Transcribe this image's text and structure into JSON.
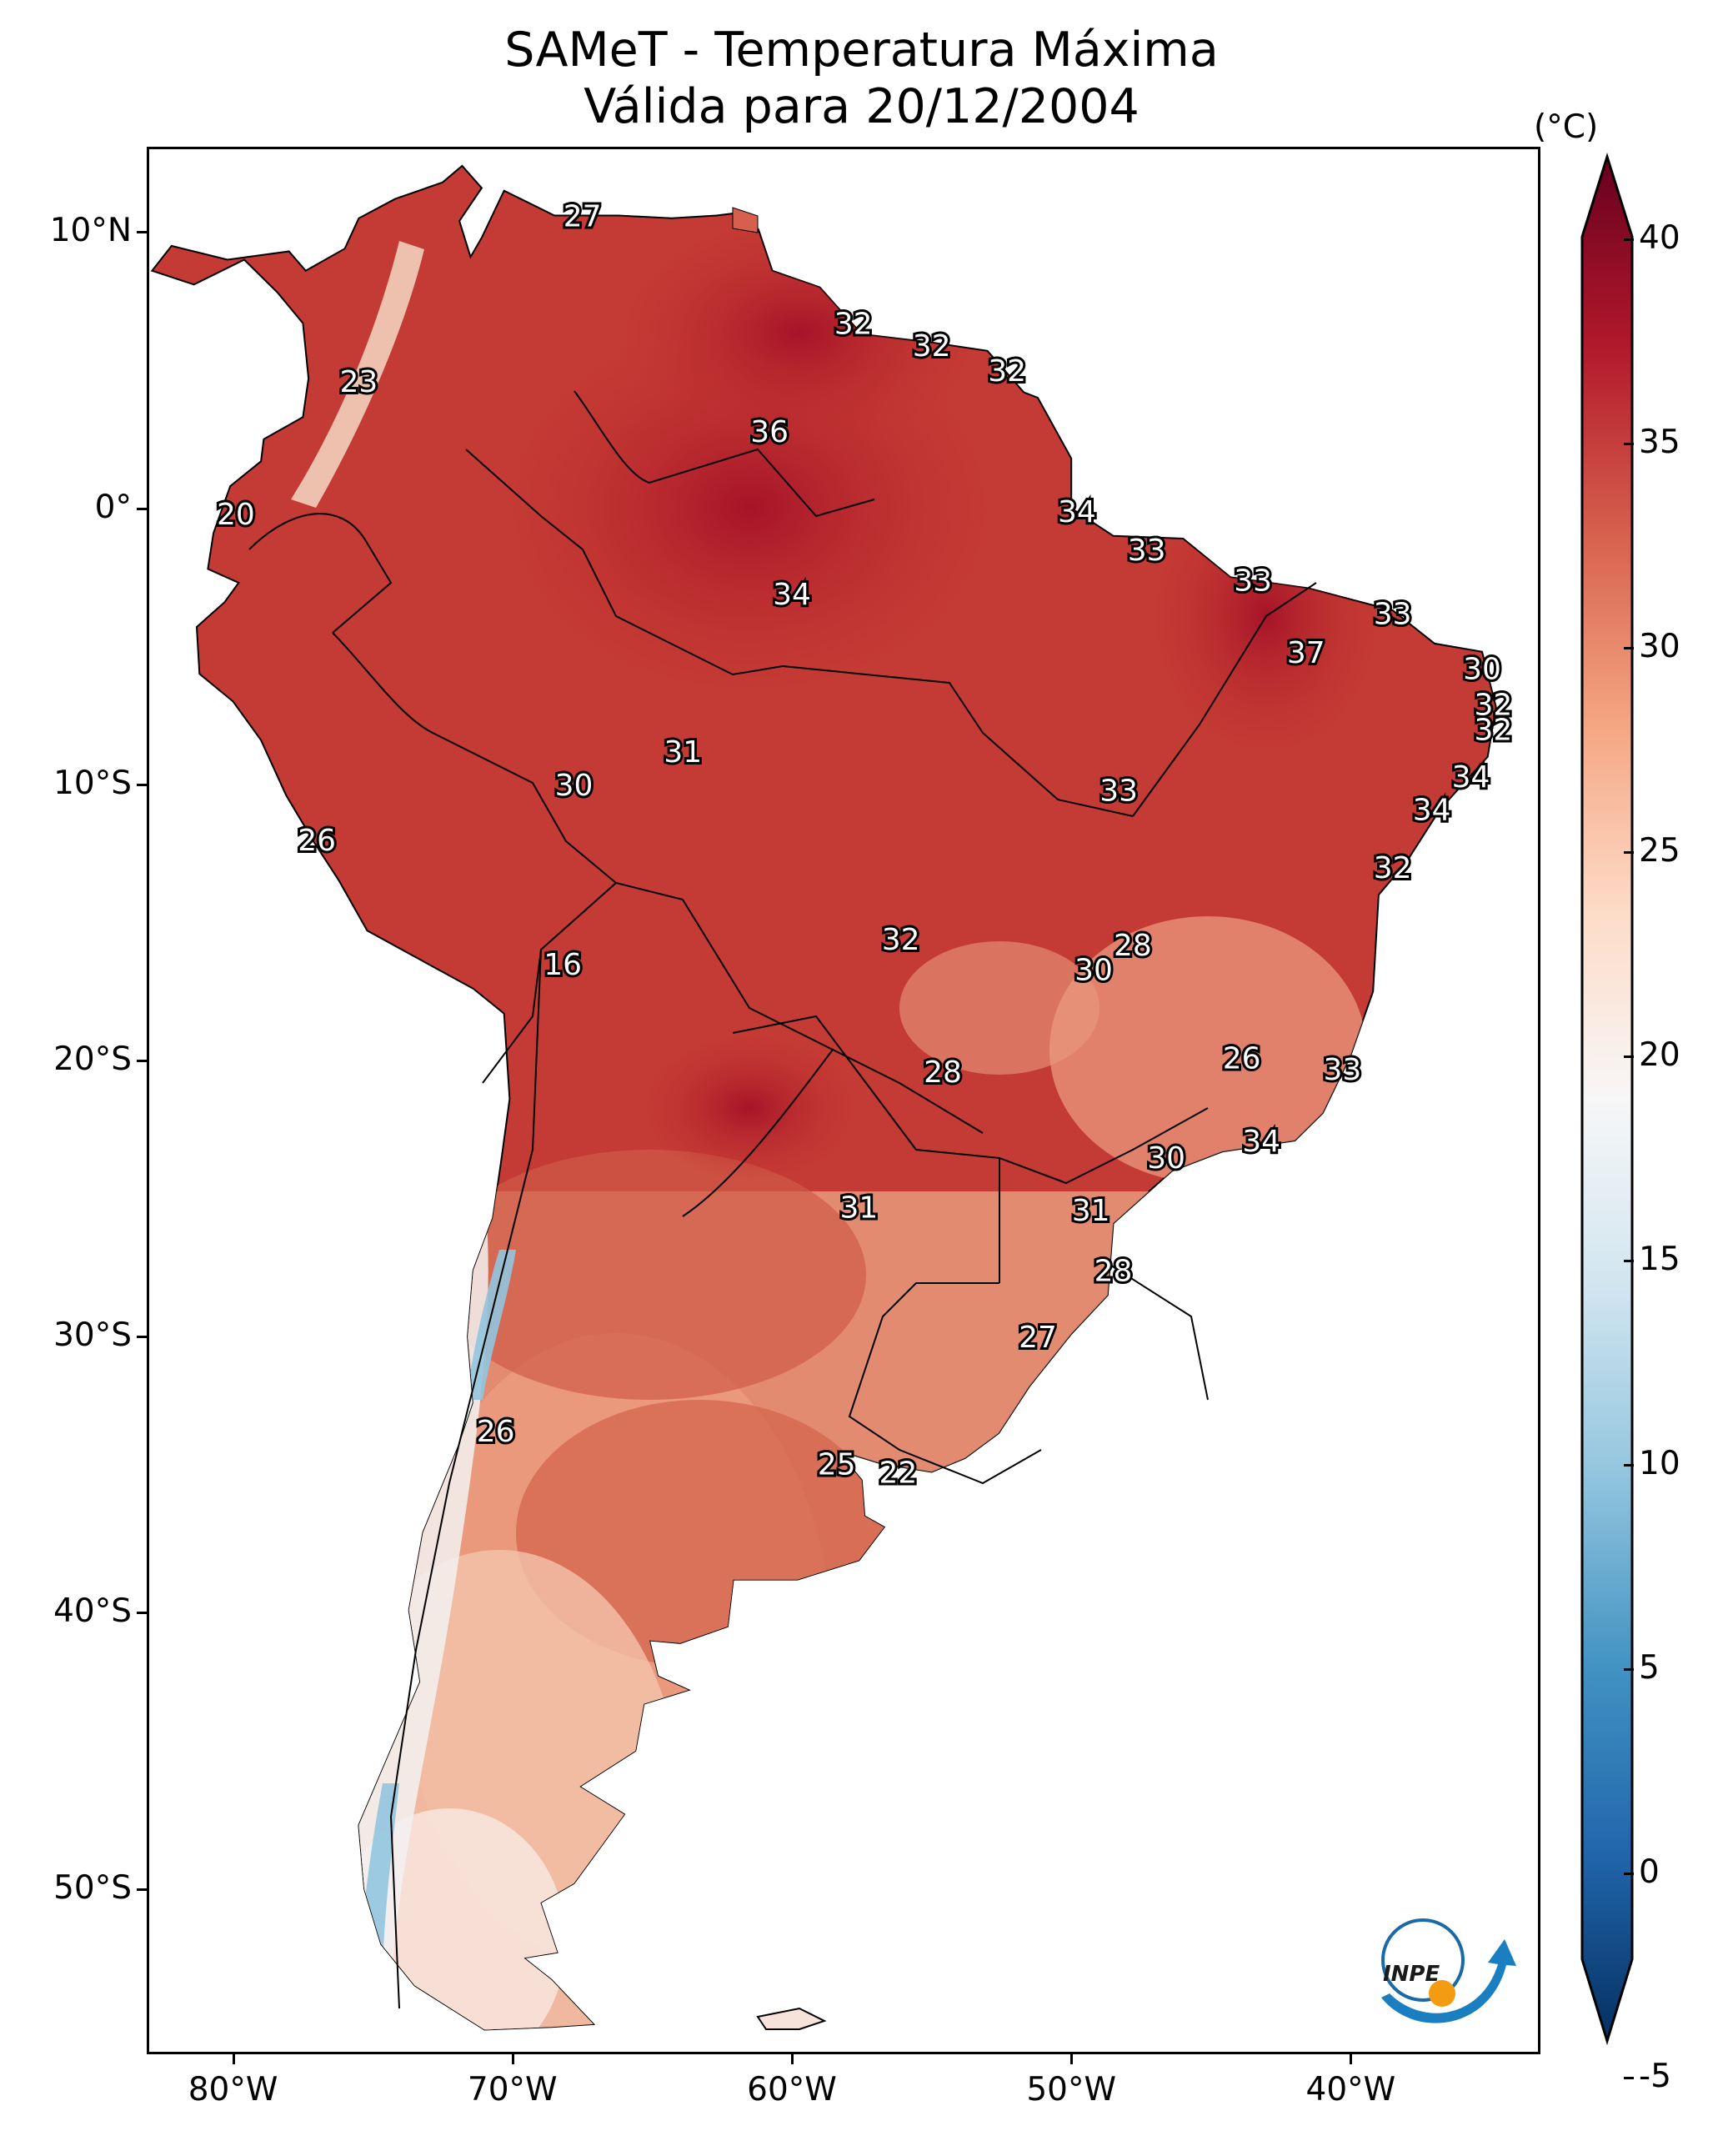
{
  "title_line1": "SAMeT - Temperatura Máxima",
  "title_line2": "Válida para 20/12/2004",
  "colorbar": {
    "unit": "(°C)",
    "ticks": [
      "40",
      "35",
      "30",
      "25",
      "20",
      "15",
      "10",
      "5",
      "0",
      "-5"
    ],
    "colors": [
      "#053061",
      "#2166ac",
      "#4393c3",
      "#92c5de",
      "#d1e5f0",
      "#f7f7f7",
      "#fddbc7",
      "#f4a582",
      "#d6604d",
      "#b2182b",
      "#67001f"
    ]
  },
  "axes": {
    "lat_labels": [
      "10°N",
      "0°",
      "10°S",
      "20°S",
      "30°S",
      "40°S",
      "50°S"
    ],
    "lon_labels": [
      "80°W",
      "70°W",
      "60°W",
      "50°W",
      "40°W"
    ]
  },
  "logo_text": "INPE",
  "stations": [
    {
      "v": "27",
      "lon": -67.5,
      "lat": 10.6
    },
    {
      "v": "32",
      "lon": -57.8,
      "lat": 6.7
    },
    {
      "v": "32",
      "lon": -55.0,
      "lat": 5.9
    },
    {
      "v": "32",
      "lon": -52.3,
      "lat": 5.0
    },
    {
      "v": "23",
      "lon": -75.5,
      "lat": 4.6
    },
    {
      "v": "36",
      "lon": -60.8,
      "lat": 2.8
    },
    {
      "v": "20",
      "lon": -79.9,
      "lat": -0.2
    },
    {
      "v": "34",
      "lon": -49.8,
      "lat": -0.1
    },
    {
      "v": "33",
      "lon": -47.3,
      "lat": -1.5
    },
    {
      "v": "33",
      "lon": -43.5,
      "lat": -2.6
    },
    {
      "v": "34",
      "lon": -60.0,
      "lat": -3.1
    },
    {
      "v": "33",
      "lon": -38.5,
      "lat": -3.8
    },
    {
      "v": "37",
      "lon": -41.6,
      "lat": -5.2
    },
    {
      "v": "30",
      "lon": -35.3,
      "lat": -5.8
    },
    {
      "v": "32",
      "lon": -34.9,
      "lat": -7.1
    },
    {
      "v": "32",
      "lon": -34.9,
      "lat": -8.0
    },
    {
      "v": "31",
      "lon": -63.9,
      "lat": -8.8
    },
    {
      "v": "30",
      "lon": -67.8,
      "lat": -10.0
    },
    {
      "v": "34",
      "lon": -35.7,
      "lat": -9.7
    },
    {
      "v": "33",
      "lon": -48.3,
      "lat": -10.2
    },
    {
      "v": "34",
      "lon": -37.1,
      "lat": -10.9
    },
    {
      "v": "26",
      "lon": -77.0,
      "lat": -12.0
    },
    {
      "v": "32",
      "lon": -38.5,
      "lat": -13.0
    },
    {
      "v": "28",
      "lon": -47.8,
      "lat": -15.8
    },
    {
      "v": "32",
      "lon": -56.1,
      "lat": -15.6
    },
    {
      "v": "30",
      "lon": -49.2,
      "lat": -16.7
    },
    {
      "v": "16",
      "lon": -68.2,
      "lat": -16.5
    },
    {
      "v": "26",
      "lon": -43.9,
      "lat": -19.9
    },
    {
      "v": "33",
      "lon": -40.3,
      "lat": -20.3
    },
    {
      "v": "28",
      "lon": -54.6,
      "lat": -20.4
    },
    {
      "v": "34",
      "lon": -43.2,
      "lat": -22.9
    },
    {
      "v": "30",
      "lon": -46.6,
      "lat": -23.5
    },
    {
      "v": "31",
      "lon": -57.6,
      "lat": -25.3
    },
    {
      "v": "31",
      "lon": -49.3,
      "lat": -25.4
    },
    {
      "v": "28",
      "lon": -48.5,
      "lat": -27.6
    },
    {
      "v": "27",
      "lon": -51.2,
      "lat": -30.0
    },
    {
      "v": "26",
      "lon": -70.6,
      "lat": -33.4
    },
    {
      "v": "25",
      "lon": -58.4,
      "lat": -34.6
    },
    {
      "v": "22",
      "lon": -56.2,
      "lat": -34.9
    }
  ]
}
